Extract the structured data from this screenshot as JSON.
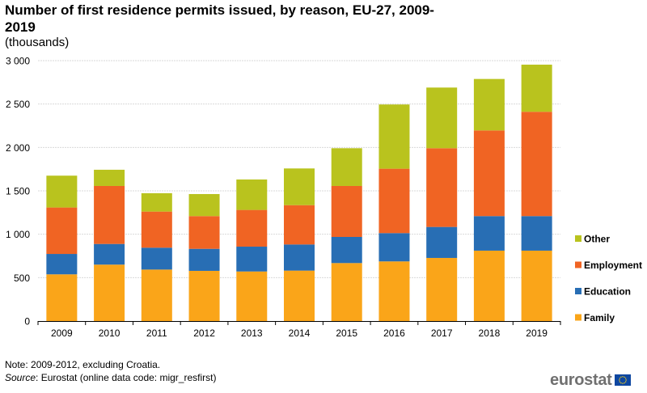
{
  "header": {
    "title": "Number of first residence permits issued, by reason, EU-27, 2009-2019",
    "subtitle": "(thousands)"
  },
  "footer": {
    "note": "Note: 2009-2012, excluding Croatia.",
    "source_label": "Source",
    "source_text": ": Eurostat (online data code: migr_resfirst)",
    "logo_text": "eurostat"
  },
  "chart_data": {
    "type": "bar",
    "stacked": true,
    "title": "Number of first residence permits issued, by reason, EU-27, 2009-2019",
    "subtitle": "(thousands)",
    "xlabel": "",
    "ylabel": "",
    "ylim": [
      0,
      3000
    ],
    "yticks": [
      0,
      500,
      1000,
      1500,
      2000,
      2500,
      3000
    ],
    "ytick_labels": [
      "0",
      "500",
      "1 000",
      "1 500",
      "2 000",
      "2 500",
      "3 000"
    ],
    "grid": true,
    "legend_position": "right",
    "categories": [
      "2009",
      "2010",
      "2011",
      "2012",
      "2013",
      "2014",
      "2015",
      "2016",
      "2017",
      "2018",
      "2019"
    ],
    "series": [
      {
        "name": "Family",
        "color": "#faa519",
        "values": [
          538,
          650,
          593,
          578,
          571,
          581,
          668,
          687,
          727,
          811,
          811
        ]
      },
      {
        "name": "Education",
        "color": "#286eb4",
        "values": [
          235,
          238,
          252,
          254,
          286,
          301,
          301,
          326,
          357,
          398,
          398
        ]
      },
      {
        "name": "Employment",
        "color": "#f06423",
        "values": [
          535,
          668,
          416,
          377,
          423,
          453,
          587,
          742,
          907,
          987,
          1202
        ]
      },
      {
        "name": "Other",
        "color": "#b9c31e",
        "values": [
          367,
          187,
          212,
          254,
          351,
          423,
          435,
          740,
          699,
          593,
          543
        ]
      }
    ],
    "legend_order": [
      "Other",
      "Employment",
      "Education",
      "Family"
    ]
  }
}
